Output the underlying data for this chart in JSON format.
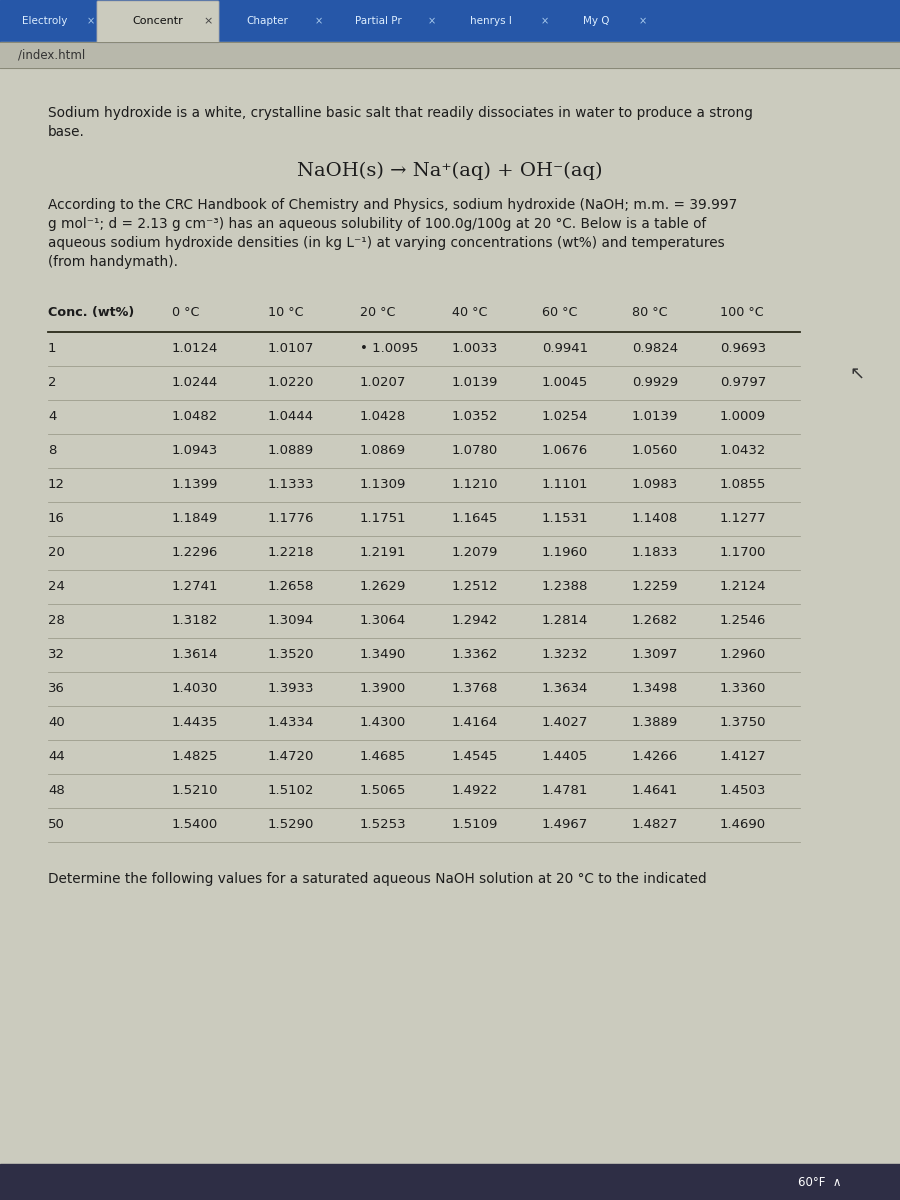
{
  "browser_tabs": [
    "Electroly",
    "Concentr",
    "Chapter",
    "Partial Pr",
    "henrys l",
    "My Q"
  ],
  "active_tab": 1,
  "url": "/index.html",
  "tab_bar_color": "#2657a8",
  "active_tab_color": "#cbcbbe",
  "page_bg": "#cbcbbe",
  "url_bar_color": "#b8b8ab",
  "intro_text_line1": "Sodium hydroxide is a white, crystalline basic salt that readily dissociates in water to produce a strong",
  "intro_text_line2": "base.",
  "equation": "NaOH(s) → Na⁺(aq) + OH⁻(aq)",
  "para_lines": [
    "According to the CRC Handbook of Chemistry and Physics, sodium hydroxide (NaOH; m.m. = 39.997",
    "g mol⁻¹; d = 2.13 g cm⁻³) has an aqueous solubility of 100.0g/100g at 20 °C. Below is a table of",
    "aqueous sodium hydroxide densities (in kg L⁻¹) at varying concentrations (wt%) and temperatures",
    "(from handymath)."
  ],
  "table_headers": [
    "Conc. (wt%)",
    "0 °C",
    "10 °C",
    "20 °C",
    "40 °C",
    "60 °C",
    "80 °C",
    "100 °C"
  ],
  "table_data": [
    [
      1,
      1.0124,
      1.0107,
      1.0095,
      1.0033,
      0.9941,
      0.9824,
      0.9693
    ],
    [
      2,
      1.0244,
      1.022,
      1.0207,
      1.0139,
      1.0045,
      0.9929,
      0.9797
    ],
    [
      4,
      1.0482,
      1.0444,
      1.0428,
      1.0352,
      1.0254,
      1.0139,
      1.0009
    ],
    [
      8,
      1.0943,
      1.0889,
      1.0869,
      1.078,
      1.0676,
      1.056,
      1.0432
    ],
    [
      12,
      1.1399,
      1.1333,
      1.1309,
      1.121,
      1.1101,
      1.0983,
      1.0855
    ],
    [
      16,
      1.1849,
      1.1776,
      1.1751,
      1.1645,
      1.1531,
      1.1408,
      1.1277
    ],
    [
      20,
      1.2296,
      1.2218,
      1.2191,
      1.2079,
      1.196,
      1.1833,
      1.17
    ],
    [
      24,
      1.2741,
      1.2658,
      1.2629,
      1.2512,
      1.2388,
      1.2259,
      1.2124
    ],
    [
      28,
      1.3182,
      1.3094,
      1.3064,
      1.2942,
      1.2814,
      1.2682,
      1.2546
    ],
    [
      32,
      1.3614,
      1.352,
      1.349,
      1.3362,
      1.3232,
      1.3097,
      1.296
    ],
    [
      36,
      1.403,
      1.3933,
      1.39,
      1.3768,
      1.3634,
      1.3498,
      1.336
    ],
    [
      40,
      1.4435,
      1.4334,
      1.43,
      1.4164,
      1.4027,
      1.3889,
      1.375
    ],
    [
      44,
      1.4825,
      1.472,
      1.4685,
      1.4545,
      1.4405,
      1.4266,
      1.4127
    ],
    [
      48,
      1.521,
      1.5102,
      1.5065,
      1.4922,
      1.4781,
      1.4641,
      1.4503
    ],
    [
      50,
      1.54,
      1.529,
      1.5253,
      1.5109,
      1.4967,
      1.4827,
      1.469
    ]
  ],
  "dot_row": 0,
  "dot_col": 3,
  "footer_text": "Determine the following values for a saturated aqueous NaOH solution at 20 °C to the indicated",
  "text_color": "#1c1c1c",
  "table_line_color": "#999988",
  "taskbar_color": "#2e2e45",
  "taskbar_text": "60°F  ∧"
}
